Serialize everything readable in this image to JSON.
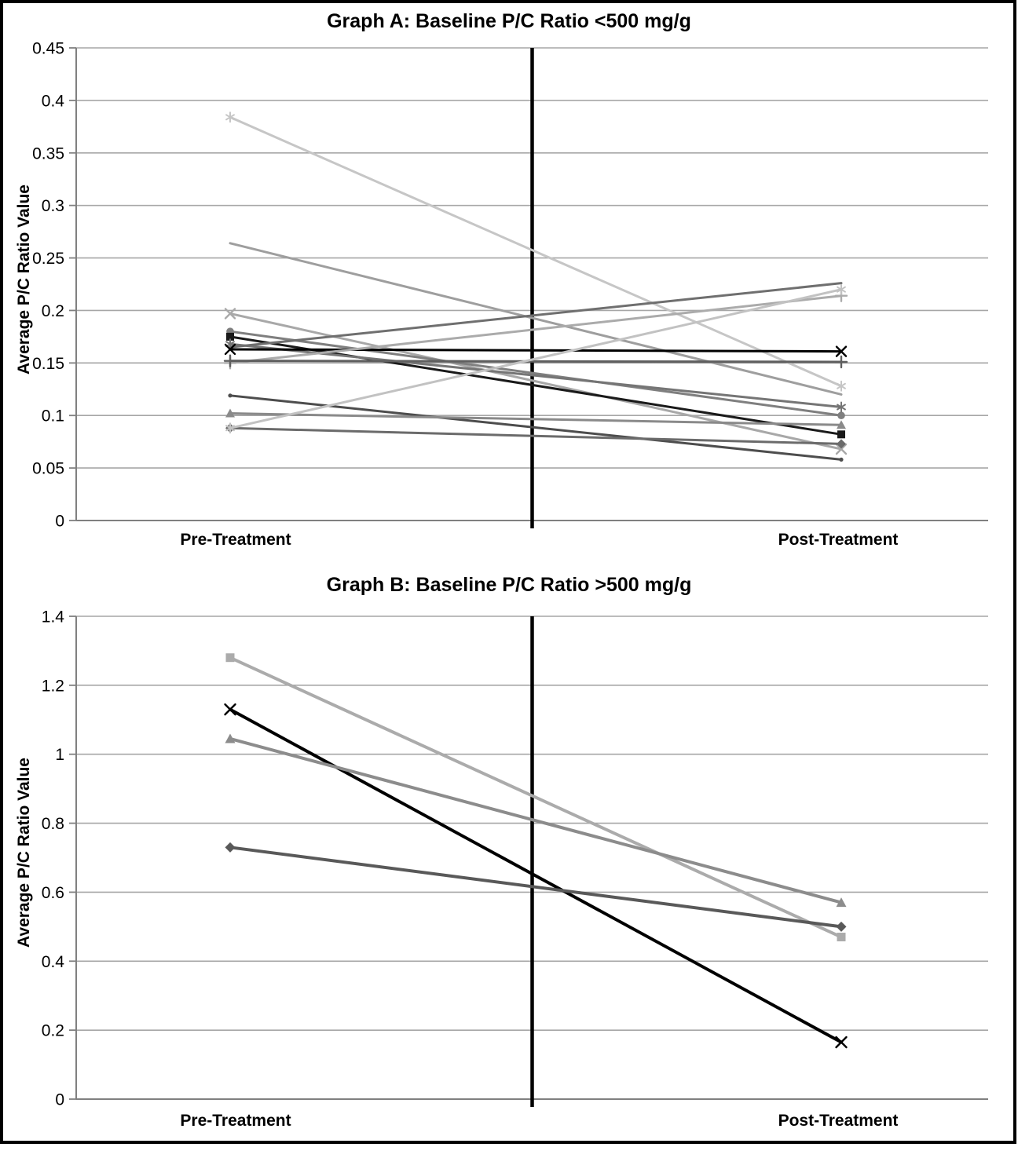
{
  "page": {
    "background_color": "#ffffff",
    "frame_color": "#000000",
    "gridline_color": "#a6a6a6",
    "axis_color": "#808080",
    "divider_color": "#000000"
  },
  "chart_data": [
    {
      "id": "graph-a",
      "type": "line",
      "title": "Graph A: Baseline P/C Ratio <500 mg/g",
      "ylabel": "Average P/C Ratio Value",
      "categories": [
        "Pre-Treatment",
        "Post-Treatment"
      ],
      "ylim": [
        0,
        0.45
      ],
      "ytick_labels": [
        "0",
        "0.05",
        "0.1",
        "0.15",
        "0.2",
        "0.25",
        "0.3",
        "0.35",
        "0.4",
        "0.45"
      ],
      "grid": true,
      "legend": "none",
      "center_divider": true,
      "series": [
        {
          "name": "patient-1",
          "marker": "star",
          "color": "#c6c6c6",
          "values": [
            0.384,
            0.128
          ]
        },
        {
          "name": "patient-2",
          "marker": "none",
          "color": "#9e9e9e",
          "values": [
            0.264,
            0.12
          ]
        },
        {
          "name": "patient-3",
          "marker": "x",
          "color": "#a8a8a8",
          "values": [
            0.197,
            0.068
          ]
        },
        {
          "name": "patient-4",
          "marker": "circle",
          "color": "#7f7f7f",
          "values": [
            0.18,
            0.1
          ]
        },
        {
          "name": "patient-5",
          "marker": "square",
          "color": "#1a1a1a",
          "values": [
            0.175,
            0.082
          ]
        },
        {
          "name": "patient-6",
          "marker": "star",
          "color": "#757575",
          "values": [
            0.168,
            0.108
          ]
        },
        {
          "name": "patient-7",
          "marker": "none",
          "color": "#6f6f6f",
          "values": [
            0.165,
            0.226
          ]
        },
        {
          "name": "patient-8",
          "marker": "x",
          "color": "#000000",
          "values": [
            0.163,
            0.161
          ]
        },
        {
          "name": "patient-9",
          "marker": "plus",
          "color": "#ababab",
          "values": [
            0.15,
            0.214
          ]
        },
        {
          "name": "patient-10",
          "marker": "plus",
          "color": "#5f5f5f",
          "values": [
            0.152,
            0.151
          ]
        },
        {
          "name": "patient-11",
          "marker": "dot",
          "color": "#4d4d4d",
          "values": [
            0.119,
            0.058
          ]
        },
        {
          "name": "patient-12",
          "marker": "triangle",
          "color": "#8a8a8a",
          "values": [
            0.102,
            0.091
          ]
        },
        {
          "name": "patient-13",
          "marker": "diamond",
          "color": "#6b6b6b",
          "values": [
            0.088,
            0.073
          ]
        },
        {
          "name": "patient-14",
          "marker": "star",
          "color": "#c2c2c2",
          "values": [
            0.088,
            0.22
          ]
        }
      ]
    },
    {
      "id": "graph-b",
      "type": "line",
      "title": "Graph B: Baseline P/C Ratio >500 mg/g",
      "ylabel": "Average P/C Ratio Value",
      "categories": [
        "Pre-Treatment",
        "Post-Treatment"
      ],
      "ylim": [
        0,
        1.4
      ],
      "ytick_labels": [
        "0",
        "0.2",
        "0.4",
        "0.6",
        "0.8",
        "1",
        "1.2",
        "1.4"
      ],
      "grid": true,
      "legend": "none",
      "center_divider": true,
      "series": [
        {
          "name": "patient-1",
          "marker": "square",
          "color": "#ababab",
          "values": [
            1.28,
            0.47
          ]
        },
        {
          "name": "patient-2",
          "marker": "x",
          "color": "#000000",
          "values": [
            1.13,
            0.165
          ]
        },
        {
          "name": "patient-3",
          "marker": "triangle",
          "color": "#8c8c8c",
          "values": [
            1.045,
            0.57
          ]
        },
        {
          "name": "patient-4",
          "marker": "diamond",
          "color": "#595959",
          "values": [
            0.73,
            0.5
          ]
        }
      ]
    }
  ]
}
